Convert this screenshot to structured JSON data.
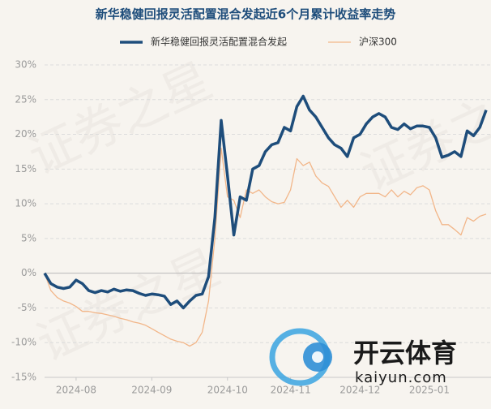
{
  "chart_data": {
    "type": "line",
    "title": "新华稳健回报灵活配置混合发起近6个月累计收益率走势",
    "categories": [
      null,
      null,
      null,
      null,
      null,
      "2024-08",
      null,
      null,
      null,
      null,
      null,
      null,
      null,
      null,
      null,
      null,
      null,
      "2024-09",
      null,
      null,
      null,
      null,
      null,
      null,
      null,
      null,
      null,
      null,
      null,
      "2024-10",
      null,
      null,
      null,
      null,
      null,
      null,
      null,
      null,
      null,
      "2024-11",
      null,
      null,
      null,
      null,
      null,
      null,
      null,
      null,
      null,
      null,
      "2024-12",
      null,
      null,
      null,
      null,
      null,
      null,
      null,
      null,
      null,
      null,
      "2025-01",
      null,
      null,
      null,
      null,
      null,
      null,
      null,
      null,
      null
    ],
    "series": [
      {
        "name": "新华稳健回报灵活配置混合发起",
        "color": "#1e4d7b",
        "width": 3.5,
        "values": [
          0,
          -1.5,
          -2,
          -2.2,
          -2,
          -1,
          -1.5,
          -2.5,
          -2.8,
          -2.5,
          -2.7,
          -2.3,
          -2.6,
          -2.4,
          -2.5,
          -2.9,
          -3.2,
          -3,
          -3.1,
          -3.3,
          -4.5,
          -4,
          -5,
          -4,
          -3.2,
          -3,
          -0.5,
          8,
          22,
          14,
          5.5,
          11,
          10.5,
          15,
          15.5,
          17.5,
          18.5,
          18.8,
          21,
          20.5,
          24,
          25.5,
          23.5,
          22.5,
          21,
          19.5,
          18.5,
          18,
          16.8,
          19.5,
          20,
          21.5,
          22.5,
          23,
          22.5,
          21,
          20.7,
          21.5,
          20.8,
          21.2,
          21.2,
          21,
          19.5,
          16.7,
          17,
          17.5,
          16.8,
          20.5,
          19.8,
          21,
          23.5
        ]
      },
      {
        "name": "沪深300",
        "color": "#f2b689",
        "width": 1.3,
        "values": [
          0,
          -2.5,
          -3.5,
          -4,
          -4.3,
          -4.8,
          -5.5,
          -5.5,
          -5.7,
          -5.8,
          -6,
          -6.2,
          -6.5,
          -6.7,
          -7,
          -7.2,
          -7.5,
          -8,
          -8.5,
          -9,
          -9.5,
          -9.8,
          -10,
          -10.5,
          -10,
          -8.5,
          -4,
          5,
          18,
          11,
          10.5,
          8,
          12,
          11.5,
          12,
          11,
          10.3,
          10,
          10.2,
          12,
          16.5,
          15.5,
          16,
          14,
          13,
          12.5,
          11,
          9.5,
          10.5,
          9.5,
          11,
          11.5,
          11.5,
          11.5,
          11,
          12,
          11,
          11.8,
          11.3,
          12.3,
          12.6,
          12,
          9,
          7,
          7,
          6.3,
          5.5,
          8,
          7.5,
          8.2,
          8.5
        ]
      }
    ],
    "ylim": [
      -15,
      30
    ],
    "yticks": [
      {
        "value": -15,
        "label": "-15%"
      },
      {
        "value": -10,
        "label": "-10%"
      },
      {
        "value": -5,
        "label": "-5%"
      },
      {
        "value": 0,
        "label": "0%"
      },
      {
        "value": 5,
        "label": "5%"
      },
      {
        "value": 10,
        "label": "10%"
      },
      {
        "value": 15,
        "label": "15%"
      },
      {
        "value": 20,
        "label": "20%"
      },
      {
        "value": 25,
        "label": "25%"
      },
      {
        "value": 30,
        "label": "30%"
      }
    ],
    "grid": true,
    "legend": "top",
    "watermarks": [
      "证券之星",
      "开云体育",
      "kaiyun.com"
    ]
  }
}
